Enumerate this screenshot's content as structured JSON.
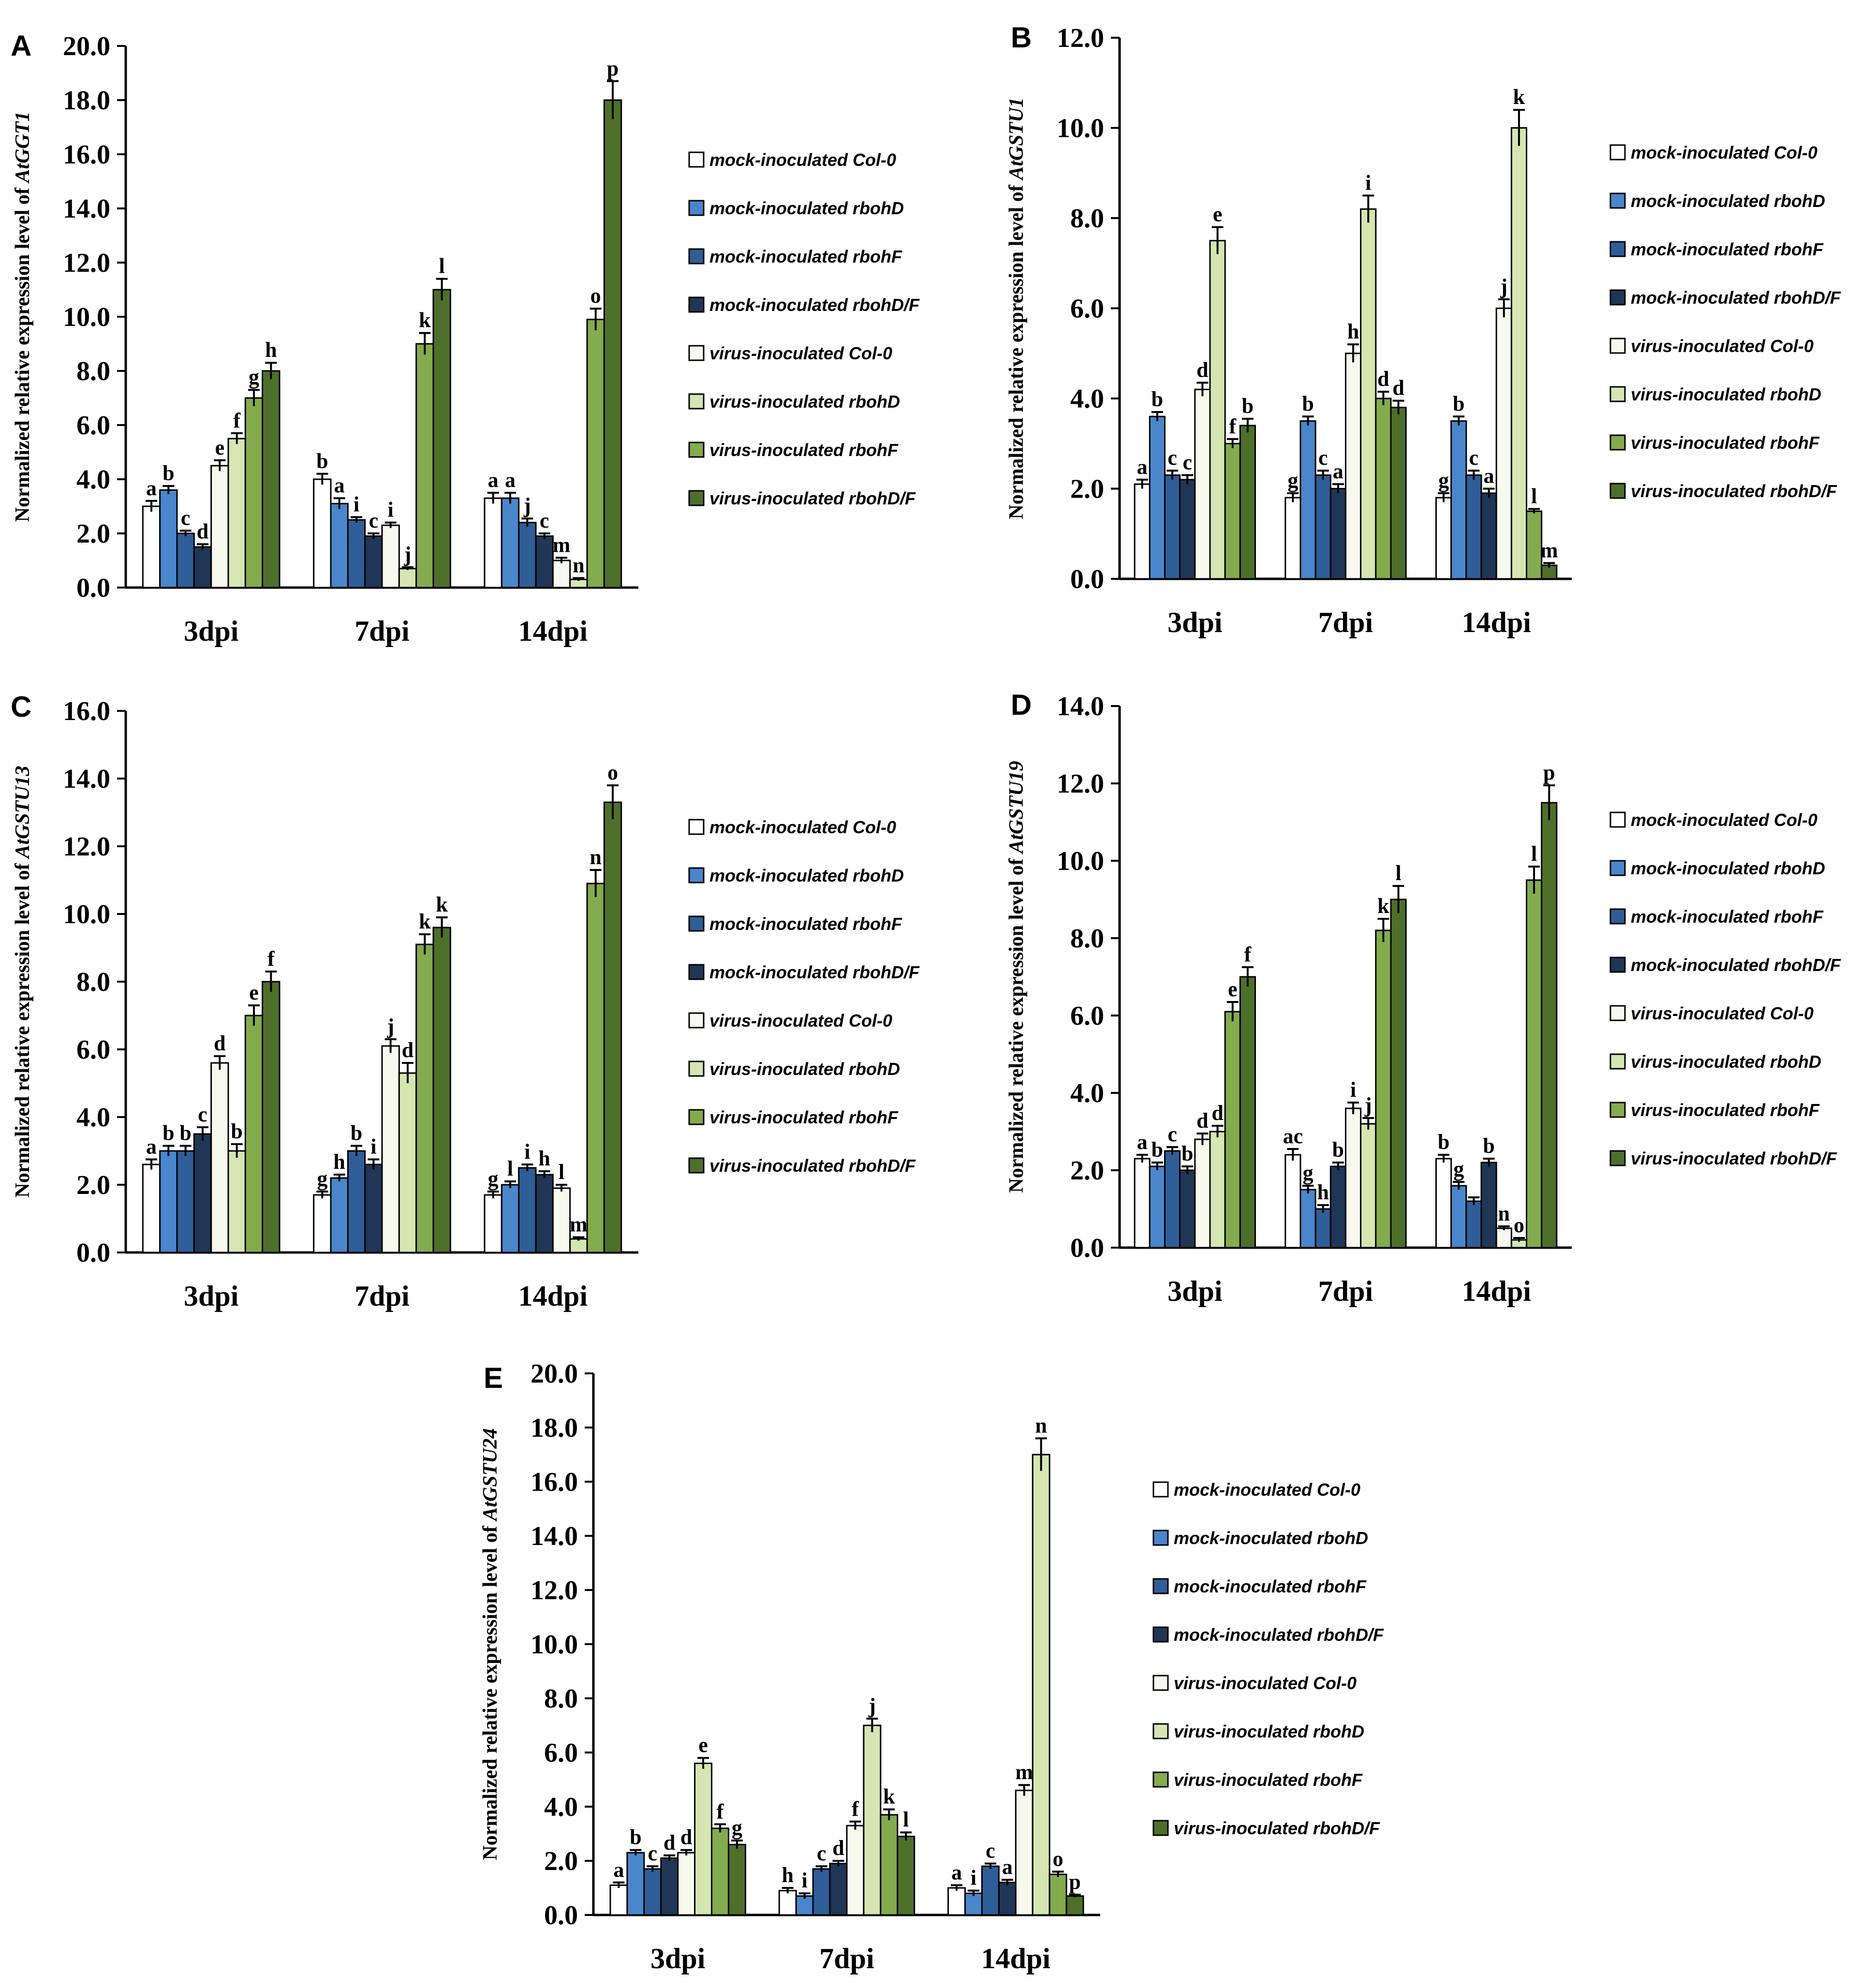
{
  "legend": [
    {
      "label": "mock-inoculated Col-0",
      "color": "#ffffff"
    },
    {
      "label": "mock-inoculated rbohD",
      "color": "#4a86cc"
    },
    {
      "label": "mock-inoculated rbohF",
      "color": "#2f5d98"
    },
    {
      "label": "mock-inoculated rbohD/F",
      "color": "#1f3656"
    },
    {
      "label": "virus-inoculated Col-0",
      "color": "#f7f9ef"
    },
    {
      "label": "virus-inoculated rbohD",
      "color": "#d6e6b2"
    },
    {
      "label": "virus-inoculated rbohF",
      "color": "#84ab4e"
    },
    {
      "label": "virus-inoculated rbohD/F",
      "color": "#4e6f2a"
    }
  ],
  "chart_data": [
    {
      "panel": "A",
      "type": "bar",
      "ylabel_prefix": "Normalized relative expression level of ",
      "ylabel_gene": "AtGGT1",
      "ylim": [
        0,
        20
      ],
      "ystep": 2,
      "categories": [
        "3dpi",
        "7dpi",
        "14dpi"
      ],
      "values": [
        [
          3.0,
          3.6,
          2.0,
          1.5,
          4.5,
          5.5,
          7.0,
          8.0
        ],
        [
          4.0,
          3.1,
          2.5,
          1.9,
          2.3,
          0.7,
          9.0,
          11.0
        ],
        [
          3.3,
          3.3,
          2.4,
          1.9,
          1.0,
          0.3,
          9.9,
          18.0
        ]
      ],
      "errors": [
        [
          0.2,
          0.15,
          0.1,
          0.1,
          0.2,
          0.2,
          0.3,
          0.3
        ],
        [
          0.2,
          0.2,
          0.1,
          0.1,
          0.1,
          0.05,
          0.4,
          0.4
        ],
        [
          0.2,
          0.2,
          0.15,
          0.1,
          0.1,
          0.05,
          0.4,
          0.7
        ]
      ],
      "letters": [
        [
          "a",
          "b",
          "c",
          "d",
          "e",
          "f",
          "g",
          "h"
        ],
        [
          "b",
          "a",
          "i",
          "c",
          "i",
          "j",
          "k",
          "l"
        ],
        [
          "a",
          "a",
          "j",
          "c",
          "m",
          "n",
          "o",
          "p"
        ]
      ]
    },
    {
      "panel": "B",
      "type": "bar",
      "ylabel_prefix": "Normalized relative expression level of ",
      "ylabel_gene": "AtGSTU1",
      "ylim": [
        0,
        12
      ],
      "ystep": 2,
      "categories": [
        "3dpi",
        "7dpi",
        "14dpi"
      ],
      "values": [
        [
          2.1,
          3.6,
          2.3,
          2.2,
          4.2,
          7.5,
          3.0,
          3.4
        ],
        [
          1.8,
          3.5,
          2.3,
          2.0,
          5.0,
          8.2,
          4.0,
          3.8
        ],
        [
          1.8,
          3.5,
          2.3,
          1.9,
          6.0,
          10.0,
          1.5,
          0.3
        ]
      ],
      "errors": [
        [
          0.1,
          0.1,
          0.1,
          0.1,
          0.15,
          0.3,
          0.1,
          0.15
        ],
        [
          0.1,
          0.1,
          0.1,
          0.1,
          0.2,
          0.3,
          0.15,
          0.15
        ],
        [
          0.1,
          0.1,
          0.1,
          0.1,
          0.2,
          0.4,
          0.05,
          0.05
        ]
      ],
      "letters": [
        [
          "a",
          "b",
          "c",
          "c",
          "d",
          "e",
          "f",
          "b"
        ],
        [
          "g",
          "b",
          "c",
          "a",
          "h",
          "i",
          "d",
          "d"
        ],
        [
          "g",
          "b",
          "c",
          "a",
          "j",
          "k",
          "l",
          "m"
        ]
      ]
    },
    {
      "panel": "C",
      "type": "bar",
      "ylabel_prefix": "Normalized relative expression level of ",
      "ylabel_gene": "AtGSTU13",
      "ylim": [
        0,
        16
      ],
      "ystep": 2,
      "categories": [
        "3dpi",
        "7dpi",
        "14dpi"
      ],
      "values": [
        [
          2.6,
          3.0,
          3.0,
          3.5,
          5.6,
          3.0,
          7.0,
          8.0
        ],
        [
          1.7,
          2.2,
          3.0,
          2.6,
          6.1,
          5.3,
          9.1,
          9.6
        ],
        [
          1.7,
          2.0,
          2.5,
          2.3,
          1.9,
          0.4,
          10.9,
          13.3
        ]
      ],
      "errors": [
        [
          0.15,
          0.15,
          0.15,
          0.2,
          0.2,
          0.2,
          0.3,
          0.3
        ],
        [
          0.1,
          0.1,
          0.15,
          0.15,
          0.2,
          0.3,
          0.3,
          0.3
        ],
        [
          0.1,
          0.1,
          0.1,
          0.1,
          0.1,
          0.05,
          0.4,
          0.5
        ]
      ],
      "letters": [
        [
          "a",
          "b",
          "b",
          "c",
          "d",
          "b",
          "e",
          "f"
        ],
        [
          "g",
          "h",
          "b",
          "i",
          "j",
          "d",
          "k",
          "k"
        ],
        [
          "g",
          "l",
          "i",
          "h",
          "l",
          "m",
          "n",
          "o"
        ]
      ]
    },
    {
      "panel": "D",
      "type": "bar",
      "ylabel_prefix": "Normalized relative expression level of ",
      "ylabel_gene": "AtGSTU19",
      "ylim": [
        0,
        14
      ],
      "ystep": 2,
      "categories": [
        "3dpi",
        "7dpi",
        "14dpi"
      ],
      "values": [
        [
          2.3,
          2.1,
          2.5,
          2.0,
          2.8,
          3.0,
          6.1,
          7.0
        ],
        [
          2.4,
          1.5,
          1.0,
          2.1,
          3.6,
          3.2,
          8.2,
          9.0
        ],
        [
          2.3,
          1.6,
          1.2,
          2.2,
          0.5,
          0.2,
          9.5,
          11.5
        ]
      ],
      "errors": [
        [
          0.1,
          0.1,
          0.1,
          0.1,
          0.15,
          0.15,
          0.25,
          0.25
        ],
        [
          0.15,
          0.1,
          0.1,
          0.1,
          0.15,
          0.15,
          0.3,
          0.35
        ],
        [
          0.1,
          0.1,
          0.1,
          0.1,
          0.05,
          0.05,
          0.35,
          0.45
        ]
      ],
      "letters": [
        [
          "a",
          "b",
          "c",
          "b",
          "d",
          "d",
          "e",
          "f"
        ],
        [
          "ac",
          "g",
          "h",
          "b",
          "i",
          "j",
          "k",
          "l"
        ],
        [
          "b",
          "g",
          "",
          "b",
          "n",
          "o",
          "l",
          "p"
        ]
      ]
    },
    {
      "panel": "E",
      "type": "bar",
      "ylabel_prefix": "Normalized relative expression level of ",
      "ylabel_gene": "AtGSTU24",
      "ylim": [
        0,
        20
      ],
      "ystep": 2,
      "categories": [
        "3dpi",
        "7dpi",
        "14dpi"
      ],
      "values": [
        [
          1.1,
          2.3,
          1.7,
          2.1,
          2.3,
          5.6,
          3.2,
          2.6
        ],
        [
          0.9,
          0.7,
          1.7,
          1.9,
          3.3,
          7.0,
          3.7,
          2.9
        ],
        [
          1.0,
          0.8,
          1.8,
          1.2,
          4.6,
          17.0,
          1.5,
          0.7
        ]
      ],
      "errors": [
        [
          0.1,
          0.1,
          0.1,
          0.1,
          0.1,
          0.2,
          0.15,
          0.15
        ],
        [
          0.1,
          0.1,
          0.1,
          0.1,
          0.15,
          0.25,
          0.2,
          0.15
        ],
        [
          0.1,
          0.1,
          0.1,
          0.1,
          0.2,
          0.6,
          0.1,
          0.05
        ]
      ],
      "letters": [
        [
          "a",
          "b",
          "c",
          "d",
          "d",
          "e",
          "f",
          "g"
        ],
        [
          "h",
          "i",
          "c",
          "d",
          "f",
          "j",
          "k",
          "l"
        ],
        [
          "a",
          "i",
          "c",
          "a",
          "m",
          "n",
          "o",
          "p"
        ]
      ]
    }
  ]
}
